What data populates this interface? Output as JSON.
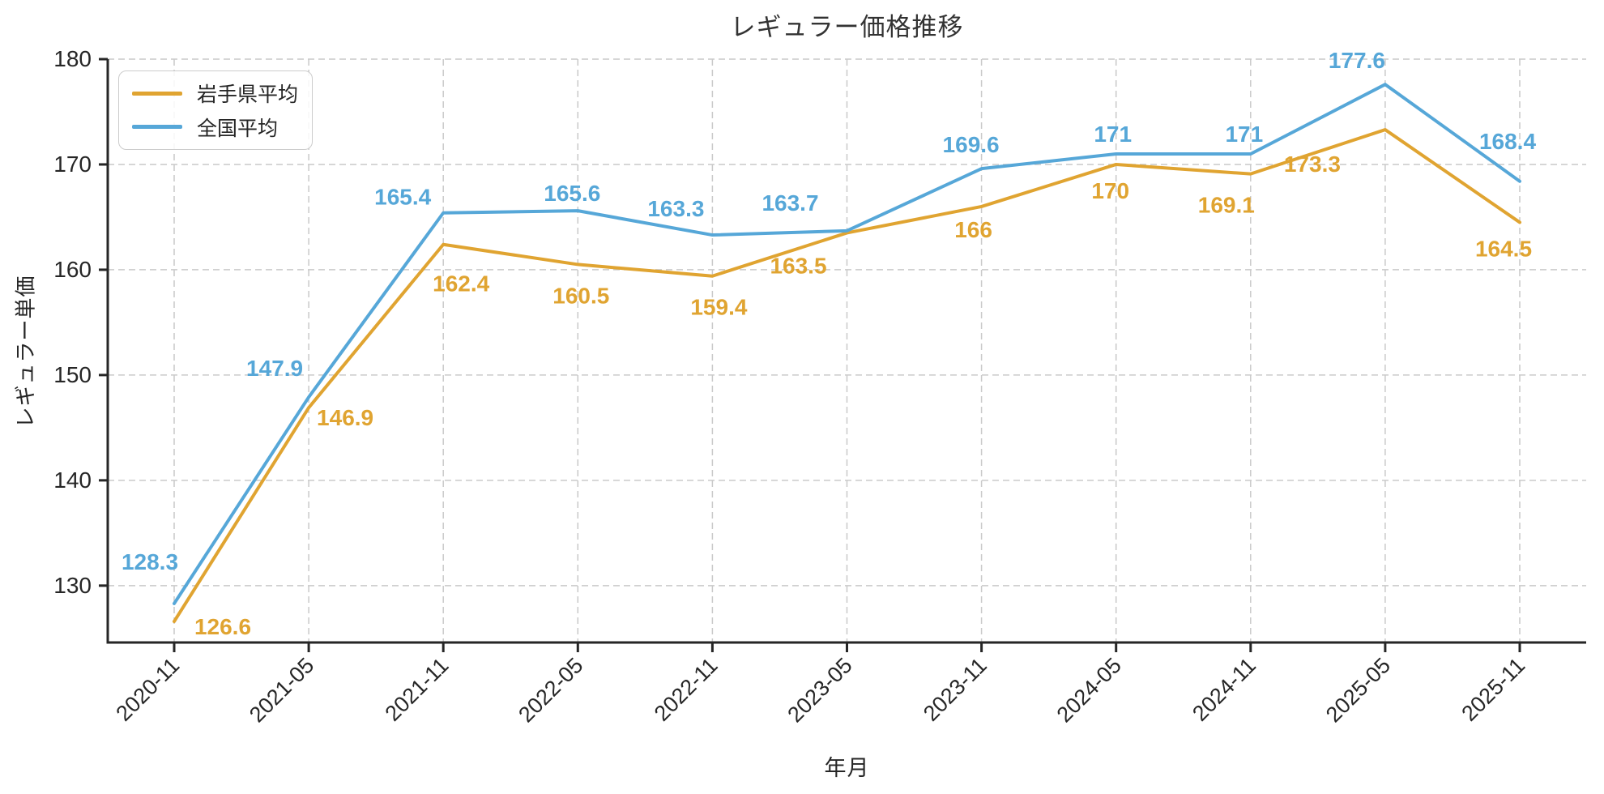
{
  "chart_data": {
    "type": "line",
    "title": "レギュラー価格推移",
    "xlabel": "年月",
    "ylabel": "レギュラー単価",
    "categories": [
      "2020-11",
      "2021-05",
      "2021-11",
      "2022-05",
      "2022-11",
      "2023-05",
      "2023-11",
      "2024-05",
      "2024-11",
      "2025-05",
      "2025-11"
    ],
    "series": [
      {
        "name": "岩手県平均",
        "color": "#E0A431",
        "values": [
          126.6,
          146.9,
          162.4,
          160.5,
          159.4,
          163.5,
          166,
          170,
          169.1,
          173.3,
          164.5
        ]
      },
      {
        "name": "全国平均",
        "color": "#56A7D8",
        "values": [
          128.3,
          147.9,
          165.4,
          165.6,
          163.3,
          163.7,
          169.6,
          171,
          171,
          177.6,
          168.4
        ]
      }
    ],
    "yticks": [
      130,
      140,
      150,
      160,
      170,
      180
    ],
    "ylim": [
      124.6,
      180
    ],
    "grid": "dashed",
    "grid_color": "#c9c9c9",
    "axis_color": "#262626",
    "legend_position": "upper-left"
  }
}
